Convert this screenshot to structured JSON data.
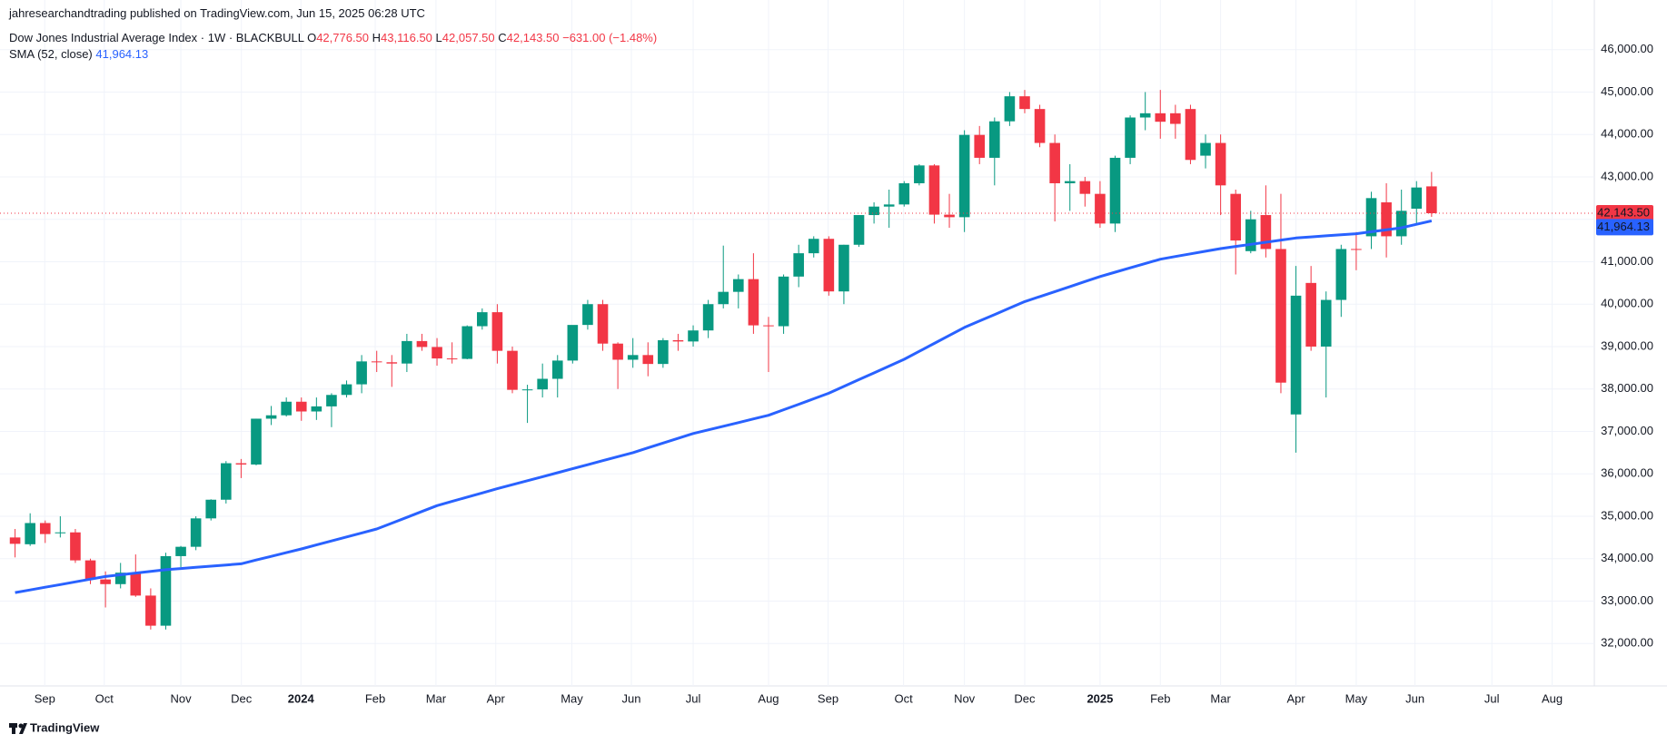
{
  "header": {
    "published": "jahresearchandtrading published on TradingView.com, Jun 15, 2025 06:28 UTC",
    "logo": "TradingView"
  },
  "chart_data": {
    "type": "candlestick",
    "title": "Dow Jones Industrial Average Index · 1W · BLACKBULL",
    "legend": {
      "o": "O",
      "open_label": "42,776.50",
      "h": "H",
      "high_label": "43,116.50",
      "l": "L",
      "low_label": "42,057.50",
      "c": "C",
      "close_label": "42,143.50",
      "change_label": "−631.00 (−1.48%)"
    },
    "up_color": "#089981",
    "down_color": "#f23645",
    "candles": {
      "open": [
        34500,
        34340,
        34840,
        34600,
        34620,
        33960,
        33510,
        33400,
        33670,
        33130,
        32420,
        34060,
        34280,
        34950,
        35390,
        36250,
        36220,
        37300,
        37380,
        37700,
        37470,
        37590,
        37860,
        38110,
        38650,
        38630,
        38600,
        39130,
        38990,
        38720,
        38710,
        39480,
        39810,
        38900,
        37980,
        37990,
        38240,
        38670,
        39510,
        40000,
        39070,
        38690,
        38800,
        38590,
        39150,
        39120,
        39380,
        40000,
        40290,
        40590,
        39500,
        39480,
        40650,
        41200,
        41540,
        40300,
        41400,
        42100,
        42300,
        42350,
        42850,
        43270,
        42110,
        42050,
        43990,
        43450,
        44310,
        44900,
        44600,
        43800,
        42850,
        42900,
        42600,
        41900,
        43450,
        44400,
        44500,
        44500,
        44600,
        43500,
        43800,
        42600,
        41250,
        42100,
        41300,
        37400,
        40500,
        39000,
        40100,
        41300,
        41600,
        42400,
        41600,
        42250,
        42776.5
      ],
      "high": [
        34700,
        35070,
        34900,
        35000,
        34700,
        34000,
        33700,
        33900,
        34100,
        33300,
        34140,
        34300,
        35000,
        35400,
        36300,
        36350,
        37300,
        37600,
        37800,
        37800,
        37800,
        37900,
        38200,
        38800,
        38900,
        38800,
        39300,
        39300,
        39200,
        39100,
        39500,
        39900,
        40000,
        39000,
        38100,
        38600,
        38800,
        39500,
        40100,
        40100,
        39100,
        39200,
        39100,
        39200,
        39300,
        39500,
        40100,
        41380,
        40700,
        41200,
        39700,
        40700,
        41400,
        41600,
        41600,
        41400,
        42100,
        42400,
        42700,
        42900,
        43300,
        43300,
        42600,
        44100,
        44200,
        44400,
        45000,
        45050,
        44700,
        44000,
        43300,
        43000,
        42900,
        43500,
        44450,
        45000,
        45050,
        44700,
        44700,
        44000,
        44000,
        42700,
        42200,
        42800,
        42600,
        40900,
        40900,
        40300,
        41400,
        41700,
        42650,
        42850,
        42700,
        42900,
        43116.5
      ],
      "low": [
        34030,
        34300,
        34370,
        34500,
        33900,
        33400,
        32850,
        33300,
        33100,
        32330,
        32330,
        33800,
        34200,
        34900,
        35300,
        35900,
        36200,
        37150,
        37350,
        37250,
        37270,
        37100,
        37800,
        37900,
        38400,
        38050,
        38400,
        38900,
        38550,
        38600,
        38700,
        39400,
        38600,
        37900,
        37200,
        37800,
        37800,
        38600,
        39400,
        38900,
        38000,
        38500,
        38300,
        38500,
        38900,
        39000,
        39200,
        39900,
        39900,
        39300,
        38400,
        39300,
        40400,
        41100,
        40200,
        40000,
        41350,
        41900,
        41800,
        42300,
        42800,
        41900,
        41800,
        41700,
        43300,
        42800,
        44200,
        44500,
        43700,
        41950,
        42200,
        42300,
        41800,
        41700,
        43300,
        44100,
        43900,
        43900,
        43300,
        43200,
        42100,
        40700,
        41200,
        41100,
        37900,
        36500,
        38900,
        37800,
        39700,
        40800,
        41300,
        41100,
        41400,
        41900,
        42057.5
      ],
      "close": [
        34350,
        34840,
        34580,
        34620,
        33960,
        33510,
        33400,
        33670,
        33130,
        32420,
        34060,
        34280,
        34950,
        35390,
        36250,
        36220,
        37300,
        37380,
        37700,
        37470,
        37590,
        37860,
        38110,
        38650,
        38630,
        38600,
        39130,
        38990,
        38720,
        38710,
        39480,
        39810,
        38900,
        37980,
        37990,
        38240,
        38670,
        39510,
        40000,
        39070,
        38690,
        38800,
        38590,
        39150,
        39120,
        39380,
        40000,
        40290,
        40590,
        39500,
        39480,
        40650,
        41200,
        41540,
        40300,
        41400,
        42100,
        42300,
        42350,
        42850,
        43270,
        42110,
        42050,
        43990,
        43450,
        44310,
        44900,
        44600,
        43800,
        42850,
        42900,
        42600,
        41900,
        43450,
        44400,
        44500,
        44300,
        44250,
        43400,
        43800,
        42800,
        41500,
        42000,
        41300,
        38150,
        40200,
        39000,
        40100,
        41300,
        41280,
        42500,
        41600,
        42200,
        42750,
        42143.5
      ]
    },
    "sma": {
      "name": "SMA (52, close)",
      "value_label": "41,964.13",
      "color": "#2962ff",
      "values": [
        33200,
        33263,
        33327,
        33390,
        33453,
        33517,
        33580,
        33620,
        33660,
        33700,
        33740,
        33768,
        33796,
        33824,
        33852,
        33880,
        33968,
        34055,
        34143,
        34230,
        34324,
        34418,
        34512,
        34606,
        34700,
        34838,
        34975,
        35113,
        35250,
        35350,
        35450,
        35550,
        35650,
        35744,
        35838,
        35932,
        36026,
        36120,
        36215,
        36310,
        36405,
        36500,
        36613,
        36725,
        36838,
        36950,
        37036,
        37122,
        37208,
        37294,
        37380,
        37510,
        37640,
        37770,
        37900,
        38060,
        38220,
        38380,
        38540,
        38700,
        38888,
        39075,
        39263,
        39450,
        39603,
        39755,
        39908,
        40060,
        40178,
        40296,
        40414,
        40532,
        40650,
        40753,
        40855,
        40958,
        41060,
        41123,
        41185,
        41248,
        41310,
        41360,
        41410,
        41460,
        41510,
        41560,
        41585,
        41610,
        41635,
        41660,
        41707,
        41753,
        41800,
        41882,
        41964.13
      ]
    },
    "xlim": [
      -1,
      104.8
    ],
    "xticks": [
      {
        "value": 1.97,
        "label": "Sep"
      },
      {
        "value": 5.92,
        "label": "Oct"
      },
      {
        "value": 11,
        "label": "Nov"
      },
      {
        "value": 15.02,
        "label": "Dec"
      },
      {
        "value": 18.97,
        "label": "2024"
      },
      {
        "value": 23.9,
        "label": "Feb"
      },
      {
        "value": 27.93,
        "label": "Mar"
      },
      {
        "value": 31.9,
        "label": "Apr"
      },
      {
        "value": 36.95,
        "label": "May"
      },
      {
        "value": 40.9,
        "label": "Jun"
      },
      {
        "value": 45,
        "label": "Jul"
      },
      {
        "value": 50,
        "label": "Aug"
      },
      {
        "value": 53.95,
        "label": "Sep"
      },
      {
        "value": 58.96,
        "label": "Oct"
      },
      {
        "value": 63,
        "label": "Nov"
      },
      {
        "value": 67,
        "label": "Dec"
      },
      {
        "value": 72,
        "label": "2025"
      },
      {
        "value": 76,
        "label": "Feb"
      },
      {
        "value": 80,
        "label": "Mar"
      },
      {
        "value": 85,
        "label": "Apr"
      },
      {
        "value": 89,
        "label": "May"
      },
      {
        "value": 92.9,
        "label": "Jun"
      },
      {
        "value": 98,
        "label": "Jul"
      },
      {
        "value": 102,
        "label": "Aug"
      }
    ],
    "ylim": [
      31000,
      47170
    ],
    "yticks": [
      {
        "value": 32000,
        "label": "32,000.00"
      },
      {
        "value": 33000,
        "label": "33,000.00"
      },
      {
        "value": 34000,
        "label": "34,000.00"
      },
      {
        "value": 35000,
        "label": "35,000.00"
      },
      {
        "value": 36000,
        "label": "36,000.00"
      },
      {
        "value": 37000,
        "label": "37,000.00"
      },
      {
        "value": 38000,
        "label": "38,000.00"
      },
      {
        "value": 39000,
        "label": "39,000.00"
      },
      {
        "value": 40000,
        "label": "40,000.00"
      },
      {
        "value": 41000,
        "label": "41,000.00"
      },
      {
        "value": 42000,
        "label": "42,000.00"
      },
      {
        "value": 43000,
        "label": "43,000.00"
      },
      {
        "value": 44000,
        "label": "44,000.00"
      },
      {
        "value": 45000,
        "label": "45,000.00"
      },
      {
        "value": 46000,
        "label": "46,000.00"
      }
    ],
    "grid": true
  }
}
